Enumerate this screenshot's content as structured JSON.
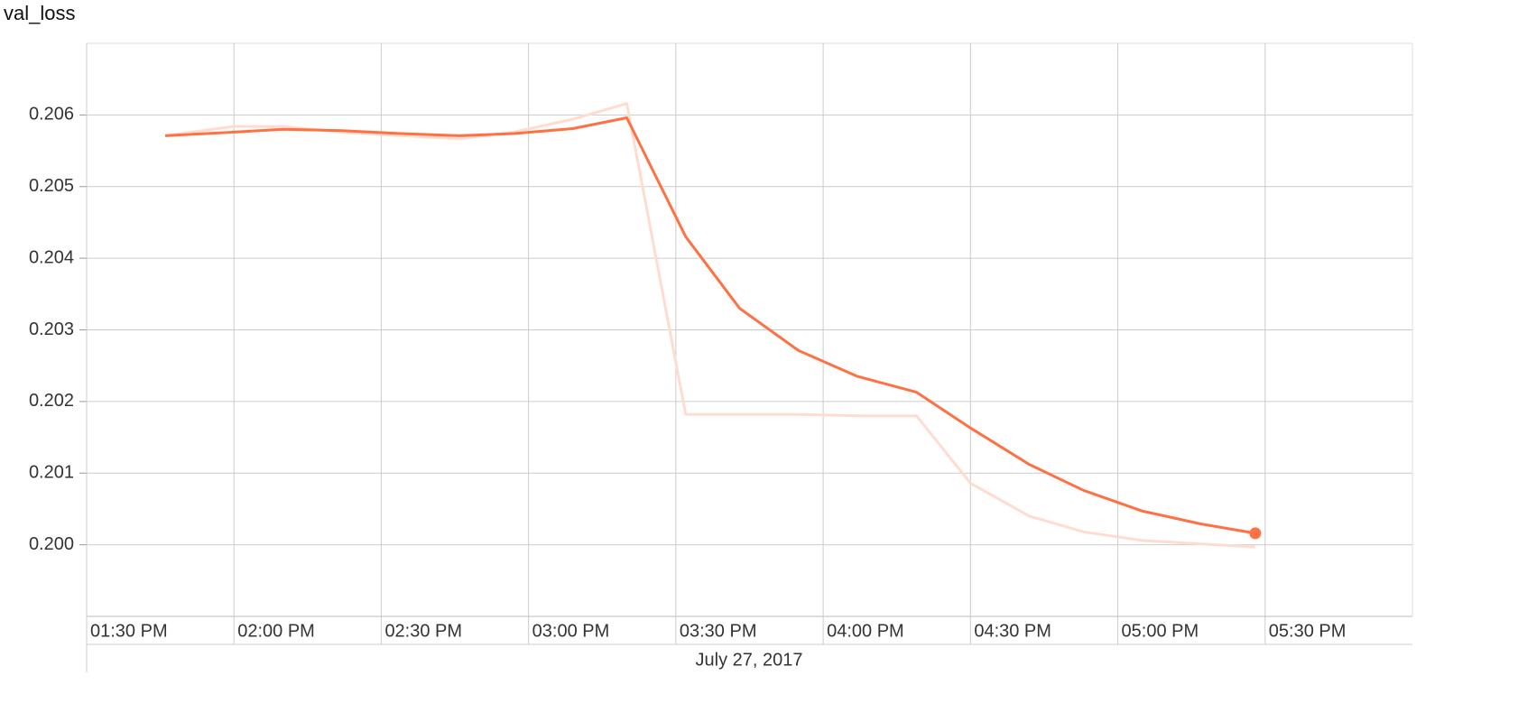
{
  "chart_data": {
    "type": "line",
    "title": "val_loss",
    "x_label": "July 27, 2017",
    "x": [
      "2017-07-27T13:46",
      "2017-07-27T14:00",
      "2017-07-27T14:10",
      "2017-07-27T14:22",
      "2017-07-27T14:34",
      "2017-07-27T14:46",
      "2017-07-27T14:57",
      "2017-07-27T15:09",
      "2017-07-27T15:20",
      "2017-07-27T15:32",
      "2017-07-27T15:43",
      "2017-07-27T15:55",
      "2017-07-27T16:07",
      "2017-07-27T16:19",
      "2017-07-27T16:30",
      "2017-07-27T16:42",
      "2017-07-27T16:53",
      "2017-07-27T17:05",
      "2017-07-27T17:17",
      "2017-07-27T17:28"
    ],
    "series": [
      {
        "color": "#ffdccf",
        "values": [
          0.20571,
          0.20584,
          0.20584,
          0.20576,
          0.20571,
          0.20567,
          0.20576,
          0.20594,
          0.20616,
          0.20182,
          0.20182,
          0.20182,
          0.2018,
          0.2018,
          0.20086,
          0.2004,
          0.20018,
          0.20006,
          0.20001,
          0.19997
        ]
      },
      {
        "color": "#ff7043",
        "values": [
          0.20571,
          0.20576,
          0.2058,
          0.20578,
          0.20574,
          0.20571,
          0.20574,
          0.20581,
          0.20596,
          0.2043,
          0.2033,
          0.20271,
          0.20235,
          0.20213,
          0.20163,
          0.20112,
          0.20076,
          0.20047,
          0.20029,
          0.20016
        ]
      }
    ],
    "xlim": [
      "2017-07-27T13:30",
      "2017-07-27T18:00"
    ],
    "xticks": [
      {
        "value": "2017-07-27T13:30",
        "label": "01:30 PM"
      },
      {
        "value": "2017-07-27T14:00",
        "label": "02:00 PM"
      },
      {
        "value": "2017-07-27T14:30",
        "label": "02:30 PM"
      },
      {
        "value": "2017-07-27T15:00",
        "label": "03:00 PM"
      },
      {
        "value": "2017-07-27T15:30",
        "label": "03:30 PM"
      },
      {
        "value": "2017-07-27T16:00",
        "label": "04:00 PM"
      },
      {
        "value": "2017-07-27T16:30",
        "label": "04:30 PM"
      },
      {
        "value": "2017-07-27T17:00",
        "label": "05:00 PM"
      },
      {
        "value": "2017-07-27T17:30",
        "label": "05:30 PM"
      }
    ],
    "ylim": [
      0.199,
      0.207
    ],
    "yticks": [
      {
        "value": 0.2,
        "label": "0.200"
      },
      {
        "value": 0.201,
        "label": "0.201"
      },
      {
        "value": 0.202,
        "label": "0.202"
      },
      {
        "value": 0.203,
        "label": "0.203"
      },
      {
        "value": 0.204,
        "label": "0.204"
      },
      {
        "value": 0.205,
        "label": "0.205"
      },
      {
        "value": 0.206,
        "label": "0.206"
      }
    ],
    "grid": true
  }
}
